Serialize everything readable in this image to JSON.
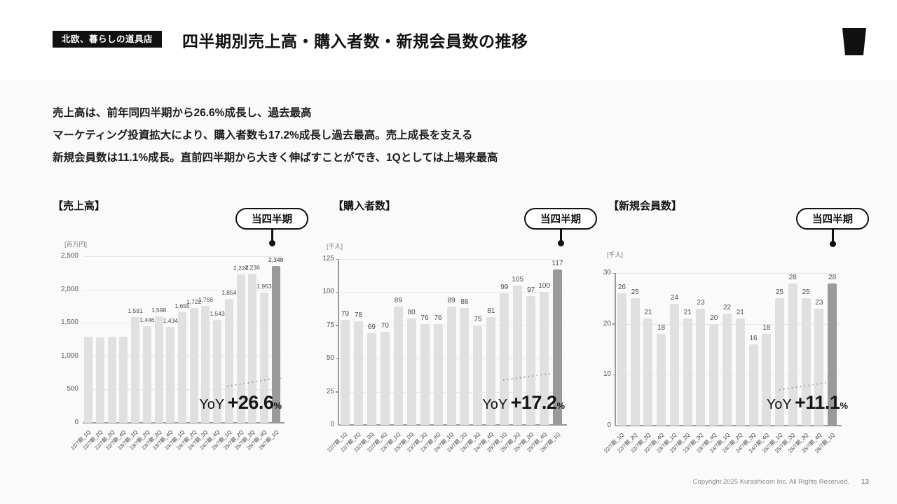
{
  "header": {
    "badge": "北欧、暮らしの道具店",
    "title": "四半期別売上高・購入者数・新規会員数の推移"
  },
  "summary": {
    "line1": "売上高は、前年同四半期から26.6%成長し、過去最高",
    "line2": "マーケティング投資拡大により、購入者数も17.2%成長し過去最高。売上成長を支える",
    "line3": "新規会員数は11.1%成長。直前四半期から大きく伸ばすことができ、1Qとしては上場来最高"
  },
  "chart_data": [
    {
      "type": "bar",
      "title": "【売上高】",
      "unit_label": "[百万円]",
      "callout": "当四半期",
      "yoy": {
        "prefix": "YoY",
        "value": "+26.6",
        "suffix": "%"
      },
      "categories": [
        "22/7期_1Q",
        "22/7期_2Q",
        "22/7期_3Q",
        "22/7期_4Q",
        "23/7期_1Q",
        "23/7期_2Q",
        "23/7期_3Q",
        "23/7期_4Q",
        "24/7期_1Q",
        "24/7期_2Q",
        "24/7期_3Q",
        "24/7期_4Q",
        "25/7期_1Q",
        "25/7期_2Q",
        "25/7期_3Q",
        "25/7期_4Q",
        "26/7期_1Q"
      ],
      "values": [
        1290,
        1285,
        1295,
        1295,
        1581,
        1446,
        1598,
        1434,
        1655,
        1722,
        1756,
        1543,
        1854,
        2224,
        2236,
        1953,
        2348
      ],
      "bar_labels": [
        "",
        "",
        "",
        "",
        "1,581",
        "1,446",
        "1,598",
        "1,434",
        "1,655",
        "1,722",
        "1,756",
        "1,543",
        "1,854",
        "2,224",
        "2,236",
        "1,953",
        "2,348"
      ],
      "ylim": [
        0,
        2500
      ],
      "yticks": [
        0,
        500,
        1000,
        1500,
        2000,
        2500
      ],
      "ytick_labels": [
        "0",
        "500",
        "1,000",
        "1,500",
        "2,000",
        "2,500"
      ],
      "grid": true,
      "highlight_last": true,
      "legend": "none"
    },
    {
      "type": "bar",
      "title": "【購入者数】",
      "unit_label": "[千人]",
      "callout": "当四半期",
      "yoy": {
        "prefix": "YoY",
        "value": "+17.2",
        "suffix": "%"
      },
      "categories": [
        "22/7期_1Q",
        "22/7期_2Q",
        "22/7期_3Q",
        "22/7期_4Q",
        "23/7期_1Q",
        "23/7期_2Q",
        "23/7期_3Q",
        "23/7期_4Q",
        "24/7期_1Q",
        "24/7期_2Q",
        "24/7期_3Q",
        "24/7期_4Q",
        "25/7期_1Q",
        "25/7期_2Q",
        "25/7期_3Q",
        "25/7期_4Q",
        "26/7期_1Q"
      ],
      "values": [
        79,
        78,
        69,
        70,
        89,
        80,
        76,
        76,
        89,
        88,
        75,
        81,
        99,
        105,
        97,
        100,
        117
      ],
      "bar_labels": [
        "79",
        "78",
        "69",
        "70",
        "89",
        "80",
        "76",
        "76",
        "89",
        "88",
        "75",
        "81",
        "99",
        "105",
        "97",
        "100",
        "117"
      ],
      "ylim": [
        0,
        125
      ],
      "yticks": [
        0,
        25,
        50,
        75,
        100,
        125
      ],
      "ytick_labels": [
        "0",
        "25",
        "50",
        "75",
        "100",
        "125"
      ],
      "grid": true,
      "highlight_last": true,
      "legend": "none"
    },
    {
      "type": "bar",
      "title": "【新規会員数】",
      "unit_label": "[千人]",
      "callout": "当四半期",
      "yoy": {
        "prefix": "YoY",
        "value": "+11.1",
        "suffix": "%"
      },
      "categories": [
        "22/7期_1Q",
        "22/7期_2Q",
        "22/7期_3Q",
        "22/7期_4Q",
        "23/7期_1Q",
        "23/7期_2Q",
        "23/7期_3Q",
        "23/7期_4Q",
        "24/7期_1Q",
        "24/7期_2Q",
        "24/7期_3Q",
        "24/7期_4Q",
        "25/7期_1Q",
        "25/7期_2Q",
        "25/7期_3Q",
        "25/7期_4Q",
        "26/7期_1Q"
      ],
      "values": [
        26,
        25,
        21,
        18,
        24,
        21,
        23,
        20,
        22,
        21,
        16,
        18,
        25,
        28,
        25,
        23,
        28
      ],
      "bar_labels": [
        "26",
        "25",
        "21",
        "18",
        "24",
        "21",
        "23",
        "20",
        "22",
        "21",
        "16",
        "18",
        "25",
        "28",
        "25",
        "23",
        "28"
      ],
      "ylim": [
        0,
        30
      ],
      "yticks": [
        0,
        10,
        20,
        30
      ],
      "ytick_labels": [
        "0",
        "10",
        "20",
        "30"
      ],
      "grid": true,
      "highlight_last": true,
      "legend": "none"
    }
  ],
  "colors": {
    "bar": "#e0e0e0",
    "bar_highlight": "#9a9a9a",
    "accent_black": "#111111",
    "body_bg": "#fafafa"
  },
  "footer": {
    "copyright": "Copyright 2025 Kurashicom Inc. All Rights Reserved.",
    "page": "13"
  }
}
